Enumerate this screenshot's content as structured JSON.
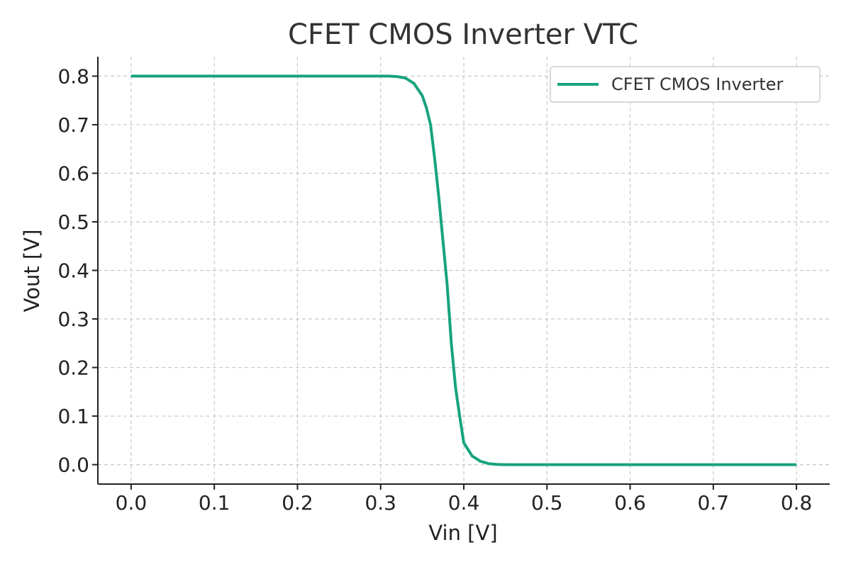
{
  "chart_data": {
    "type": "line",
    "title": "CFET CMOS Inverter VTC",
    "xlabel": "Vin [V]",
    "ylabel": "Vout [V]",
    "xlim": [
      -0.04,
      0.84
    ],
    "ylim": [
      -0.04,
      0.84
    ],
    "xticks": [
      0.0,
      0.1,
      0.2,
      0.3,
      0.4,
      0.5,
      0.6,
      0.7,
      0.8
    ],
    "xtick_labels": [
      "0.0",
      "0.1",
      "0.2",
      "0.3",
      "0.4",
      "0.5",
      "0.6",
      "0.7",
      "0.8"
    ],
    "yticks": [
      0.0,
      0.1,
      0.2,
      0.3,
      0.4,
      0.5,
      0.6,
      0.7,
      0.8
    ],
    "ytick_labels": [
      "0.0",
      "0.1",
      "0.2",
      "0.3",
      "0.4",
      "0.5",
      "0.6",
      "0.7",
      "0.8"
    ],
    "grid": true,
    "legend_position": "top-right",
    "series": [
      {
        "name": "CFET CMOS Inverter",
        "color": "#17a37e",
        "x": [
          0.0,
          0.1,
          0.2,
          0.3,
          0.31,
          0.32,
          0.33,
          0.34,
          0.35,
          0.355,
          0.36,
          0.365,
          0.37,
          0.375,
          0.38,
          0.385,
          0.39,
          0.395,
          0.4,
          0.41,
          0.42,
          0.43,
          0.44,
          0.45,
          0.5,
          0.6,
          0.7,
          0.8
        ],
        "y": [
          0.8,
          0.8,
          0.8,
          0.8,
          0.8,
          0.799,
          0.796,
          0.785,
          0.76,
          0.735,
          0.7,
          0.63,
          0.55,
          0.46,
          0.37,
          0.25,
          0.16,
          0.1,
          0.045,
          0.018,
          0.007,
          0.002,
          0.0005,
          0.0,
          0.0,
          0.0,
          0.0,
          0.0
        ]
      }
    ]
  }
}
